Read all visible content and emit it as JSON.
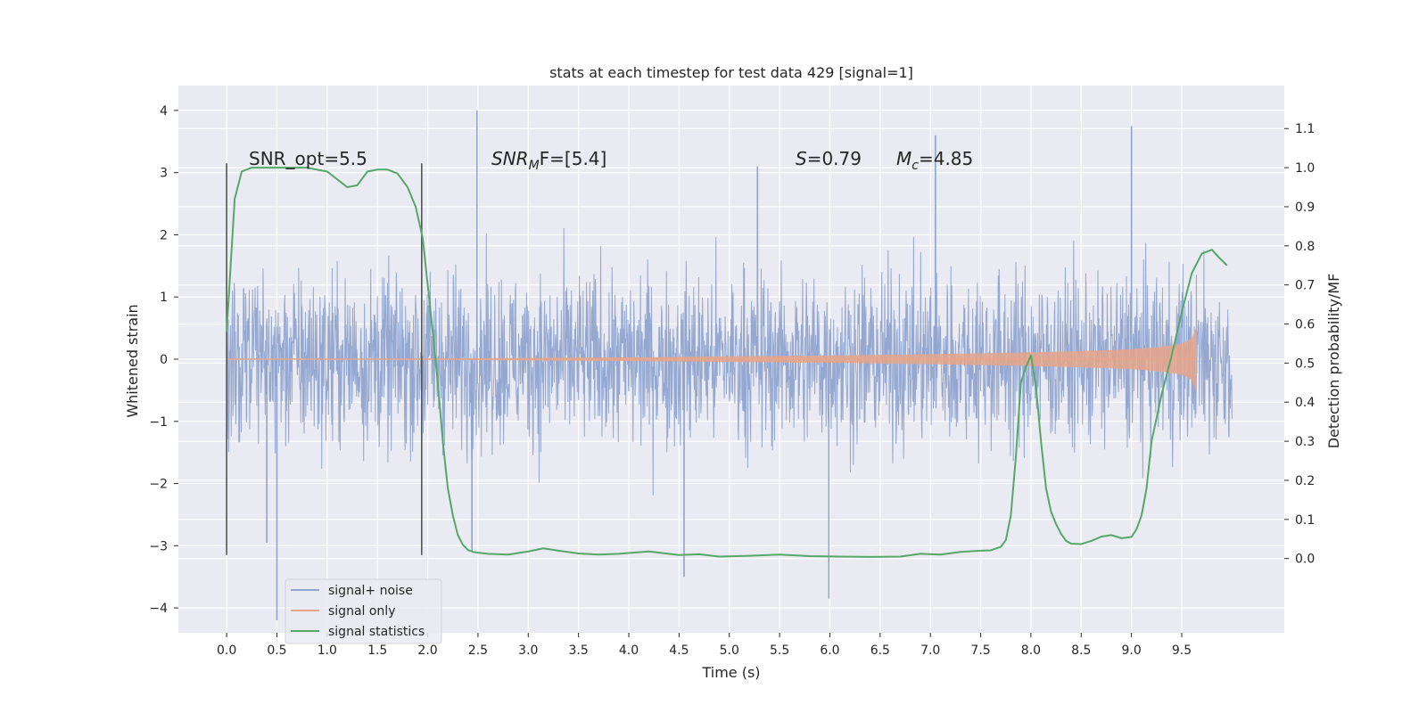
{
  "chart_data": {
    "type": "line",
    "title": "stats at each timestep for test data 429 [signal=1]",
    "xlabel": "Time (s)",
    "ylabel": "Whitened strain",
    "y2label": "Detection probability/MF",
    "xlim": [
      -0.48,
      10.52
    ],
    "ylim": [
      -4.4,
      4.4
    ],
    "y2lim": [
      -0.19,
      1.21
    ],
    "x_ticks": [
      0.0,
      0.5,
      1.0,
      1.5,
      2.0,
      2.5,
      3.0,
      3.5,
      4.0,
      4.5,
      5.0,
      5.5,
      6.0,
      6.5,
      7.0,
      7.5,
      8.0,
      8.5,
      9.0,
      9.5
    ],
    "x_tick_labels": [
      "0.0",
      "0.5",
      "1.0",
      "1.5",
      "2.0",
      "2.5",
      "3.0",
      "3.5",
      "4.0",
      "4.5",
      "5.0",
      "5.5",
      "6.0",
      "6.5",
      "7.0",
      "7.5",
      "8.0",
      "8.5",
      "9.0",
      "9.5"
    ],
    "y_ticks": [
      4,
      3,
      2,
      1,
      0,
      -1,
      -2,
      -3,
      -4
    ],
    "y_tick_labels": [
      "4",
      "3",
      "2",
      "1",
      "0",
      "−1",
      "−2",
      "−3",
      "−4"
    ],
    "y2_ticks": [
      1.1,
      1.0,
      0.9,
      0.8,
      0.7,
      0.6,
      0.5,
      0.4,
      0.3,
      0.2,
      0.1,
      0.0
    ],
    "y2_tick_labels": [
      "1.1",
      "1.0",
      "0.9",
      "0.8",
      "0.7",
      "0.6",
      "0.5",
      "0.4",
      "0.3",
      "0.2",
      "0.1",
      "0.0"
    ],
    "grid": true,
    "legend_position": "lower-left",
    "annotations": {
      "snr_opt_label": "SNR_opt=5.5",
      "snr_mf_prefix": "SNR",
      "snr_mf_sub": "M",
      "snr_mf_suffix": "F=[5.4]",
      "s_italic": "S",
      "s_value": "=0.79",
      "mc_italic": "M",
      "mc_sub": "c",
      "mc_value": "=4.85"
    },
    "vertical_markers": [
      0.0,
      1.94
    ],
    "series": [
      {
        "name": "signal+ noise",
        "color": "#8fa4cf",
        "t_range": [
          0.0,
          10.0
        ],
        "typical_amplitude": 1.75,
        "spikes": [
          {
            "x": 0.5,
            "y": -4.2
          },
          {
            "x": 2.49,
            "y": 4.0
          },
          {
            "x": 2.44,
            "y": -3.1
          },
          {
            "x": 4.55,
            "y": -3.5
          },
          {
            "x": 5.99,
            "y": -3.85
          },
          {
            "x": 9.0,
            "y": 3.75
          },
          {
            "x": 7.05,
            "y": 3.6
          },
          {
            "x": 5.28,
            "y": 3.1
          },
          {
            "x": 0.4,
            "y": -2.95
          }
        ]
      },
      {
        "name": "signal only",
        "color": "#e6a58a",
        "t_range": [
          0.0,
          9.65
        ],
        "envelope_t": [
          0.0,
          2.0,
          4.0,
          6.0,
          7.0,
          8.0,
          8.5,
          9.0,
          9.3,
          9.5,
          9.6,
          9.65
        ],
        "envelope_amp": [
          0.0,
          0.01,
          0.03,
          0.06,
          0.08,
          0.11,
          0.13,
          0.16,
          0.2,
          0.25,
          0.33,
          0.55
        ]
      },
      {
        "name": "signal statistics",
        "color": "#55a868",
        "axis": "right",
        "x": [
          0.0,
          0.08,
          0.15,
          0.25,
          0.4,
          0.6,
          0.8,
          1.0,
          1.1,
          1.2,
          1.3,
          1.4,
          1.5,
          1.6,
          1.7,
          1.8,
          1.88,
          1.95,
          2.0,
          2.05,
          2.1,
          2.15,
          2.2,
          2.25,
          2.3,
          2.35,
          2.4,
          2.45,
          2.5,
          2.6,
          2.8,
          3.0,
          3.15,
          3.3,
          3.5,
          3.7,
          3.9,
          4.2,
          4.5,
          4.7,
          4.9,
          5.2,
          5.5,
          5.8,
          6.1,
          6.4,
          6.7,
          6.9,
          7.1,
          7.3,
          7.5,
          7.6,
          7.7,
          7.75,
          7.8,
          7.85,
          7.9,
          7.95,
          8.0,
          8.05,
          8.1,
          8.15,
          8.2,
          8.25,
          8.3,
          8.35,
          8.4,
          8.5,
          8.6,
          8.7,
          8.8,
          8.9,
          9.0,
          9.05,
          9.1,
          9.15,
          9.2,
          9.3,
          9.4,
          9.5,
          9.6,
          9.7,
          9.8,
          9.87,
          9.95
        ],
        "y": [
          0.58,
          0.92,
          0.99,
          1.0,
          1.0,
          1.0,
          1.0,
          0.99,
          0.97,
          0.95,
          0.955,
          0.99,
          0.995,
          0.995,
          0.985,
          0.95,
          0.9,
          0.82,
          0.7,
          0.58,
          0.45,
          0.3,
          0.18,
          0.11,
          0.06,
          0.035,
          0.022,
          0.017,
          0.015,
          0.012,
          0.01,
          0.018,
          0.026,
          0.02,
          0.013,
          0.01,
          0.012,
          0.018,
          0.009,
          0.011,
          0.005,
          0.007,
          0.01,
          0.006,
          0.005,
          0.004,
          0.005,
          0.012,
          0.01,
          0.017,
          0.02,
          0.021,
          0.03,
          0.047,
          0.11,
          0.26,
          0.45,
          0.49,
          0.52,
          0.44,
          0.3,
          0.18,
          0.12,
          0.088,
          0.063,
          0.045,
          0.038,
          0.037,
          0.045,
          0.056,
          0.06,
          0.052,
          0.055,
          0.075,
          0.11,
          0.18,
          0.3,
          0.42,
          0.52,
          0.63,
          0.73,
          0.78,
          0.79,
          0.77,
          0.75
        ]
      }
    ]
  }
}
